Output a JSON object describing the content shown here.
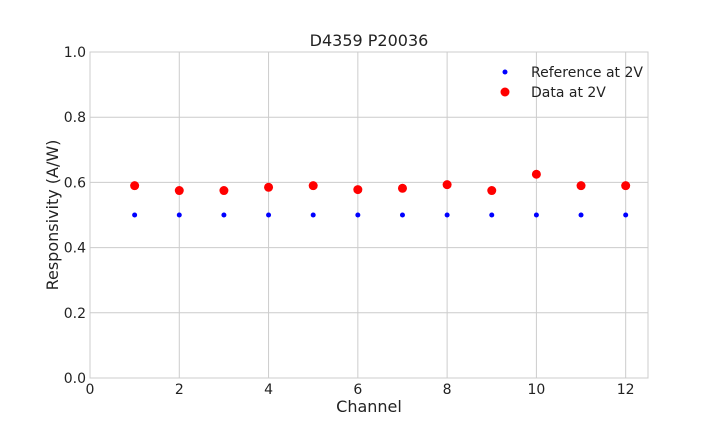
{
  "chart_data": {
    "type": "scatter",
    "title": "D4359 P20036",
    "xlabel": "Channel",
    "ylabel": "Responsivity (A/W)",
    "xlim": [
      0,
      12.5
    ],
    "ylim": [
      0.0,
      1.0
    ],
    "xticks": [
      "0",
      "2",
      "4",
      "6",
      "8",
      "10",
      "12"
    ],
    "yticks": [
      "0.0",
      "0.2",
      "0.4",
      "0.6",
      "0.8",
      "1.0"
    ],
    "grid": true,
    "legend_position": "top-right",
    "series": [
      {
        "name": "Reference at 2V",
        "color": "#0000ff",
        "marker": "small-dot",
        "x": [
          1,
          2,
          3,
          4,
          5,
          6,
          7,
          8,
          9,
          10,
          11,
          12
        ],
        "y": [
          0.5,
          0.5,
          0.5,
          0.5,
          0.5,
          0.5,
          0.5,
          0.5,
          0.5,
          0.5,
          0.5,
          0.5
        ]
      },
      {
        "name": "Data at 2V",
        "color": "#ff0000",
        "marker": "large-dot",
        "x": [
          1,
          2,
          3,
          4,
          5,
          6,
          7,
          8,
          9,
          10,
          11,
          12
        ],
        "y": [
          0.59,
          0.575,
          0.575,
          0.585,
          0.59,
          0.578,
          0.582,
          0.593,
          0.575,
          0.625,
          0.59,
          0.59
        ]
      }
    ]
  }
}
